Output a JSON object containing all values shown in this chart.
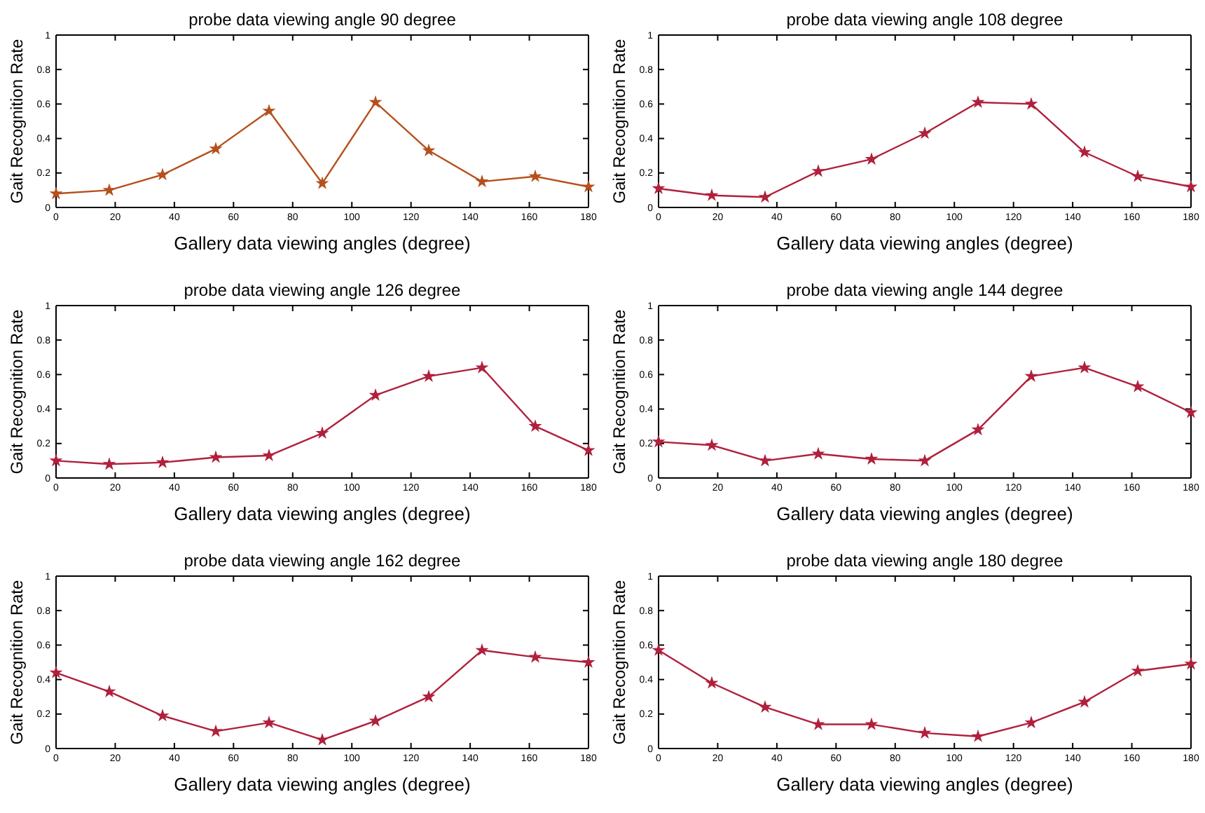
{
  "chart_data": [
    {
      "type": "line",
      "title": "probe data viewing angle 90 degree",
      "xlabel": "Gallery data viewing angles (degree)",
      "ylabel": "Gait Recognition Rate",
      "x": [
        0,
        18,
        36,
        54,
        72,
        90,
        108,
        126,
        144,
        162,
        180
      ],
      "series": [
        {
          "color": "#b5501c",
          "values": [
            0.08,
            0.1,
            0.19,
            0.34,
            0.56,
            0.14,
            0.61,
            0.33,
            0.15,
            0.18,
            0.12
          ]
        }
      ],
      "xlim": [
        0,
        180
      ],
      "xticks": [
        0,
        20,
        40,
        60,
        80,
        100,
        120,
        140,
        160,
        180
      ],
      "ylim": [
        0,
        1
      ],
      "yticks": [
        0,
        0.2,
        0.4,
        0.6,
        0.8,
        1
      ],
      "grid": false,
      "marker": "star",
      "line_style": "solid"
    },
    {
      "type": "line",
      "title": "probe data viewing angle 108 degree",
      "xlabel": "Gallery data viewing angles (degree)",
      "ylabel": "Gait Recognition Rate",
      "x": [
        0,
        18,
        36,
        54,
        72,
        90,
        108,
        126,
        144,
        162,
        180
      ],
      "series": [
        {
          "color": "#b0203c",
          "values": [
            0.11,
            0.07,
            0.06,
            0.21,
            0.28,
            0.43,
            0.61,
            0.6,
            0.32,
            0.18,
            0.12
          ]
        }
      ],
      "xlim": [
        0,
        180
      ],
      "xticks": [
        0,
        20,
        40,
        60,
        80,
        100,
        120,
        140,
        160,
        180
      ],
      "ylim": [
        0,
        1
      ],
      "yticks": [
        0,
        0.2,
        0.4,
        0.6,
        0.8,
        1
      ],
      "grid": false,
      "marker": "star",
      "line_style": "solid"
    },
    {
      "type": "line",
      "title": "probe data viewing angle 126 degree",
      "xlabel": "Gallery data viewing angles (degree)",
      "ylabel": "Gait Recognition Rate",
      "x": [
        0,
        18,
        36,
        54,
        72,
        90,
        108,
        126,
        144,
        162,
        180
      ],
      "series": [
        {
          "color": "#b0203c",
          "values": [
            0.1,
            0.08,
            0.09,
            0.12,
            0.13,
            0.26,
            0.48,
            0.59,
            0.64,
            0.3,
            0.16
          ]
        }
      ],
      "xlim": [
        0,
        180
      ],
      "xticks": [
        0,
        20,
        40,
        60,
        80,
        100,
        120,
        140,
        160,
        180
      ],
      "ylim": [
        0,
        1
      ],
      "yticks": [
        0,
        0.2,
        0.4,
        0.6,
        0.8,
        1
      ],
      "grid": false,
      "marker": "star",
      "line_style": "solid"
    },
    {
      "type": "line",
      "title": "probe data viewing angle 144 degree",
      "xlabel": "Gallery data viewing angles (degree)",
      "ylabel": "Gait Recognition Rate",
      "x": [
        0,
        18,
        36,
        54,
        72,
        90,
        108,
        126,
        144,
        162,
        180
      ],
      "series": [
        {
          "color": "#b0203c",
          "values": [
            0.21,
            0.19,
            0.1,
            0.14,
            0.11,
            0.1,
            0.28,
            0.59,
            0.64,
            0.53,
            0.38
          ]
        }
      ],
      "xlim": [
        0,
        180
      ],
      "xticks": [
        0,
        20,
        40,
        60,
        80,
        100,
        120,
        140,
        160,
        180
      ],
      "ylim": [
        0,
        1
      ],
      "yticks": [
        0,
        0.2,
        0.4,
        0.6,
        0.8,
        1
      ],
      "grid": false,
      "marker": "star",
      "line_style": "solid"
    },
    {
      "type": "line",
      "title": "probe data viewing angle 162 degree",
      "xlabel": "Gallery data viewing angles (degree)",
      "ylabel": "Gait Recognition Rate",
      "x": [
        0,
        18,
        36,
        54,
        72,
        90,
        108,
        126,
        144,
        162,
        180
      ],
      "series": [
        {
          "color": "#b0203c",
          "values": [
            0.44,
            0.33,
            0.19,
            0.1,
            0.15,
            0.05,
            0.16,
            0.3,
            0.57,
            0.53,
            0.5
          ]
        }
      ],
      "xlim": [
        0,
        180
      ],
      "xticks": [
        0,
        20,
        40,
        60,
        80,
        100,
        120,
        140,
        160,
        180
      ],
      "ylim": [
        0,
        1
      ],
      "yticks": [
        0,
        0.2,
        0.4,
        0.6,
        0.8,
        1
      ],
      "grid": false,
      "marker": "star",
      "line_style": "solid"
    },
    {
      "type": "line",
      "title": "probe data viewing angle 180 degree",
      "xlabel": "Gallery data viewing angles (degree)",
      "ylabel": "Gait Recognition Rate",
      "x": [
        0,
        18,
        36,
        54,
        72,
        90,
        108,
        126,
        144,
        162,
        180
      ],
      "series": [
        {
          "color": "#b0203c",
          "values": [
            0.57,
            0.38,
            0.24,
            0.14,
            0.14,
            0.09,
            0.07,
            0.15,
            0.27,
            0.45,
            0.49
          ]
        }
      ],
      "xlim": [
        0,
        180
      ],
      "xticks": [
        0,
        20,
        40,
        60,
        80,
        100,
        120,
        140,
        160,
        180
      ],
      "ylim": [
        0,
        1
      ],
      "yticks": [
        0,
        0.2,
        0.4,
        0.6,
        0.8,
        1
      ],
      "grid": false,
      "marker": "star",
      "line_style": "solid"
    }
  ]
}
